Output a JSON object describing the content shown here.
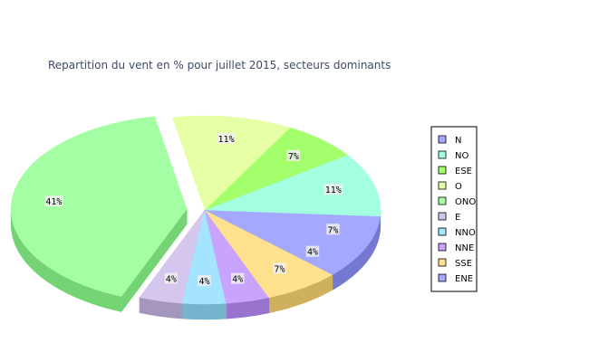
{
  "chart_data": {
    "type": "pie",
    "title": "Repartition du vent en % pour juillet 2015, secteurs dominants",
    "slices": [
      {
        "label": "N",
        "value": 7,
        "color": "#a4a8ff",
        "side": "#7478d0"
      },
      {
        "label": "NO",
        "value": 11,
        "color": "#a4ffe0",
        "side": "#72d4b0"
      },
      {
        "label": "ESE",
        "value": 7,
        "color": "#a4ff6c",
        "side": "#74d23c"
      },
      {
        "label": "O",
        "value": 11,
        "color": "#e6ffa4",
        "side": "#b8d070"
      },
      {
        "label": "ONO",
        "value": 41,
        "color": "#a4ffa4",
        "side": "#74d474"
      },
      {
        "label": "E",
        "value": 4,
        "color": "#d4c6ec",
        "side": "#a496bc"
      },
      {
        "label": "NNO",
        "value": 4,
        "color": "#a4e4ff",
        "side": "#74b4cf"
      },
      {
        "label": "NNE",
        "value": 4,
        "color": "#c8a4ff",
        "side": "#9874cf"
      },
      {
        "label": "SSE",
        "value": 7,
        "color": "#ffe08c",
        "side": "#cfb05c"
      },
      {
        "label": "ENE",
        "value": 4,
        "color": "#a4a8ff",
        "side": "#7478d0"
      }
    ],
    "value_labels": [
      "7%",
      "11%",
      "7%",
      "11%",
      "41%",
      "4%",
      "4%",
      "4%",
      "7%",
      "4%"
    ],
    "exploded": "ONO",
    "legend_position": "right"
  }
}
